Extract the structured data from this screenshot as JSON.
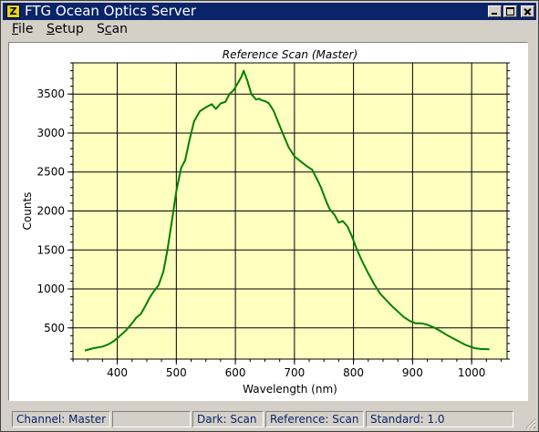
{
  "window": {
    "title": "FTG Ocean Optics Server",
    "icon_name": "app-logo-icon",
    "icon_glyph": "Z",
    "controls": [
      "minimize-icon",
      "maximize-icon",
      "close-icon"
    ]
  },
  "menu": {
    "items": [
      {
        "id": "file",
        "label": "File",
        "accel": "F",
        "rest": "ile"
      },
      {
        "id": "setup",
        "label": "Setup",
        "accel": "S",
        "rest": "etup"
      },
      {
        "id": "scan",
        "label": "Scan",
        "pre": "S",
        "accel": "c",
        "rest": "an"
      }
    ]
  },
  "chart_data": {
    "type": "line",
    "title": "Reference Scan (Master)",
    "xlabel": "Wavelength (nm)",
    "ylabel": "Counts",
    "xlim": [
      325,
      1060
    ],
    "ylim": [
      100,
      3900
    ],
    "xticks": [
      400,
      500,
      600,
      700,
      800,
      900,
      1000
    ],
    "yticks": [
      500,
      1000,
      1500,
      2000,
      2500,
      3000,
      3500
    ],
    "grid": true,
    "legend": "none",
    "colors": {
      "plot_background": "#ffffc0",
      "line": "#008000",
      "grid": "#000000"
    },
    "series": [
      {
        "x": [
          345,
          360,
          375,
          385,
          395,
          405,
          415,
          425,
          432,
          440,
          448,
          455,
          462,
          470,
          478,
          485,
          492,
          500,
          508,
          515,
          522,
          530,
          540,
          550,
          560,
          567,
          575,
          583,
          590,
          597,
          605,
          610,
          614,
          620,
          627,
          635,
          640,
          645,
          650,
          657,
          665,
          672,
          680,
          690,
          700,
          710,
          720,
          730,
          740,
          745,
          750,
          755,
          760,
          768,
          775,
          782,
          790,
          797,
          805,
          815,
          825,
          835,
          845,
          855,
          865,
          875,
          885,
          895,
          905,
          915,
          925,
          935,
          945,
          960,
          975,
          990,
          1005,
          1015,
          1030
        ],
        "y": [
          210,
          240,
          260,
          290,
          335,
          400,
          470,
          560,
          630,
          680,
          790,
          890,
          970,
          1050,
          1220,
          1500,
          1850,
          2250,
          2550,
          2650,
          2900,
          3150,
          3280,
          3330,
          3370,
          3310,
          3380,
          3400,
          3500,
          3550,
          3650,
          3720,
          3800,
          3680,
          3500,
          3430,
          3440,
          3420,
          3410,
          3380,
          3280,
          3150,
          3000,
          2820,
          2700,
          2640,
          2580,
          2530,
          2380,
          2300,
          2200,
          2100,
          2020,
          1950,
          1850,
          1870,
          1800,
          1680,
          1520,
          1350,
          1200,
          1060,
          940,
          860,
          780,
          710,
          640,
          590,
          560,
          560,
          540,
          510,
          470,
          400,
          340,
          280,
          240,
          230,
          225
        ]
      }
    ]
  },
  "status": {
    "channel": "Channel: Master",
    "blank": "",
    "dark": "Dark: Scan",
    "reference": "Reference: Scan",
    "standard": "Standard: 1.0"
  }
}
